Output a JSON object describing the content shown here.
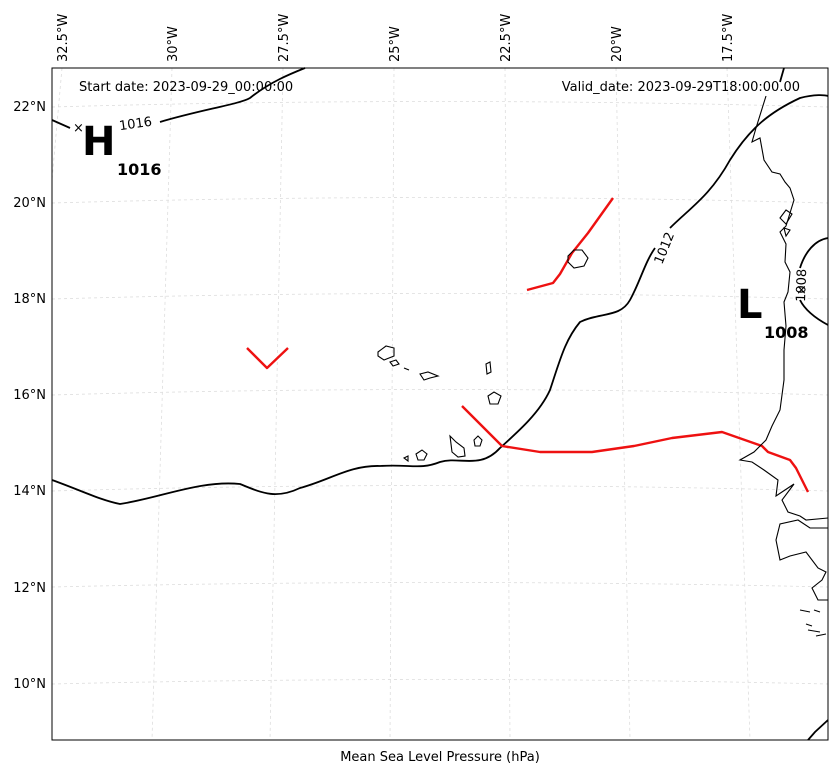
{
  "header": {
    "start_date": "Start date: 2023-09-29_00:00:00",
    "valid_date": "Valid_date: 2023-09-29T18:00:00.00"
  },
  "axes": {
    "xlabel": "Mean Sea Level Pressure (hPa)",
    "lon_ticks": [
      "32.5°W",
      "30°W",
      "27.5°W",
      "25°W",
      "22.5°W",
      "20°W",
      "17.5°W"
    ],
    "lat_ticks": [
      "22°N",
      "20°N",
      "18°N",
      "16°N",
      "14°N",
      "12°N",
      "10°N"
    ]
  },
  "pressure_centers": {
    "high": {
      "letter": "H",
      "value": "1016",
      "marker": "×"
    },
    "low": {
      "letter": "L",
      "value": "1008",
      "marker": "×"
    }
  },
  "isobar_labels": {
    "c1016": "1016",
    "c1012": "1012",
    "c1008": "1008"
  },
  "colors": {
    "isobar": "#000000",
    "front": "#ee1111",
    "coastline": "#000000",
    "grid": "#dddddd"
  }
}
